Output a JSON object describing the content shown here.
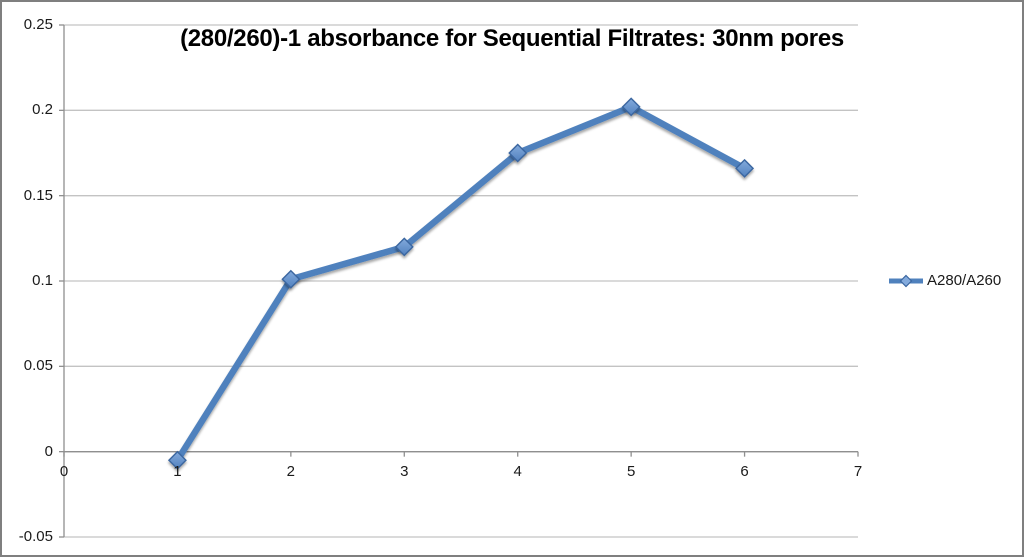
{
  "window": {
    "background": "#ffffff",
    "border_color": "#7f7f7f"
  },
  "chart_data": {
    "type": "line",
    "title": "(280/260)-1 absorbance for Sequential Filtrates: 30nm pores",
    "series": [
      {
        "name": "A280/A260",
        "x": [
          1,
          2,
          3,
          4,
          5,
          6
        ],
        "values": [
          -0.005,
          0.101,
          0.12,
          0.175,
          0.202,
          0.166
        ],
        "marker": "diamond"
      }
    ],
    "xlabel": "",
    "ylabel": "",
    "xlim": [
      0,
      7
    ],
    "ylim": [
      -0.05,
      0.25
    ],
    "x_ticks": [
      {
        "v": 0,
        "label": "0"
      },
      {
        "v": 1,
        "label": "1"
      },
      {
        "v": 2,
        "label": "2"
      },
      {
        "v": 3,
        "label": "3"
      },
      {
        "v": 4,
        "label": "4"
      },
      {
        "v": 5,
        "label": "5"
      },
      {
        "v": 6,
        "label": "6"
      },
      {
        "v": 7,
        "label": "7"
      }
    ],
    "y_ticks": [
      {
        "v": 0.25,
        "label": "0.25"
      },
      {
        "v": 0.2,
        "label": "0.2"
      },
      {
        "v": 0.15,
        "label": "0.15"
      },
      {
        "v": 0.1,
        "label": "0.1"
      },
      {
        "v": 0.05,
        "label": "0.05"
      },
      {
        "v": 0,
        "label": "0"
      },
      {
        "v": -0.05,
        "label": "-0.05"
      }
    ],
    "grid": "horizontal-only",
    "legend_position": "right-middle",
    "colors": {
      "line": "#4f81bd",
      "marker_fill_top": "#83aadc",
      "marker_fill_bottom": "#5282bf",
      "marker_stroke": "#3a66a0",
      "gridline": "#c3c3c3",
      "axis": "#8f8f8f",
      "tick_text": "#1a1a1a",
      "title_text": "#000000"
    }
  }
}
